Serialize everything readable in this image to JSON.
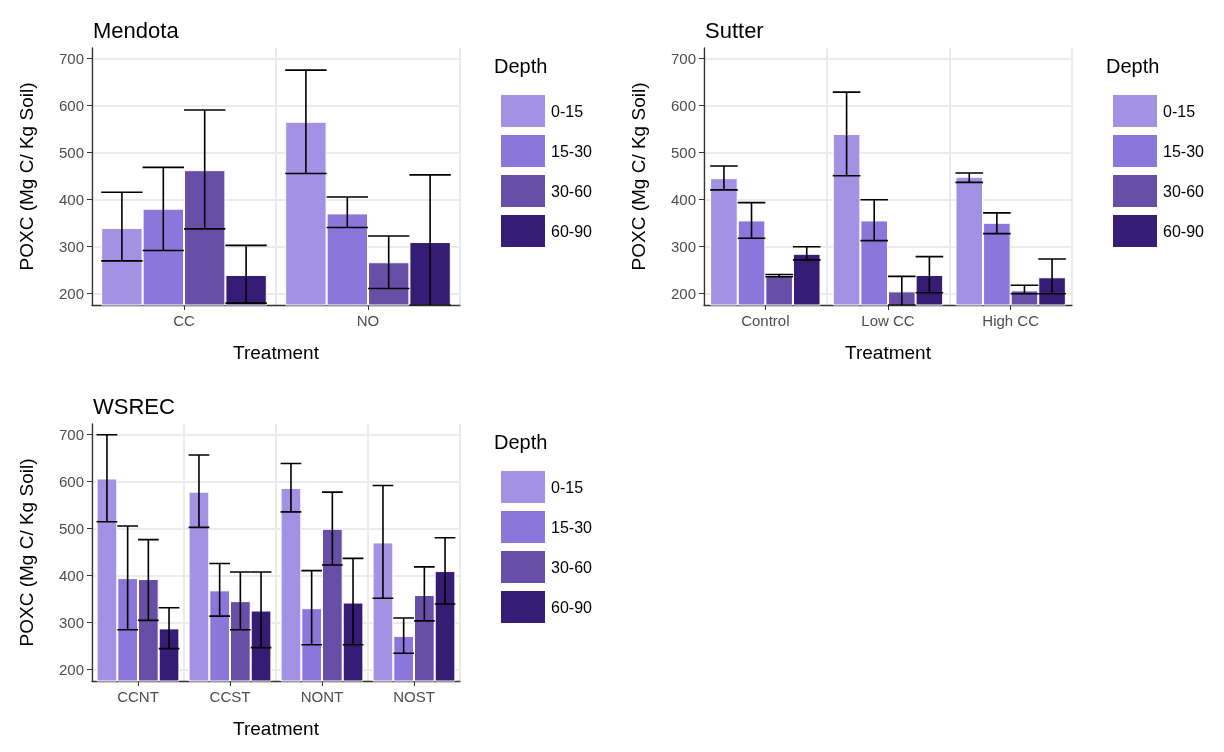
{
  "chart_data": [
    {
      "type": "bar",
      "title": "Mendota",
      "xlabel": "Treatment",
      "ylabel": "POXC (Mg C/ Kg Soil)",
      "legend_title": "Depth",
      "legend": "right",
      "grid": true,
      "ylim": [
        175,
        722
      ],
      "yticks": [
        200,
        300,
        400,
        500,
        600,
        700
      ],
      "categories": [
        "CC",
        "NO"
      ],
      "series": [
        {
          "name": "0-15",
          "color": "#a391e3",
          "values": [
            339,
            565
          ],
          "errors": [
            [
              269,
              415
            ],
            [
              455,
              675
            ]
          ]
        },
        {
          "name": "15-30",
          "color": "#8b77db",
          "values": [
            380,
            370
          ],
          "errors": [
            [
              291,
              468
            ],
            [
              340,
              405
            ]
          ]
        },
        {
          "name": "30-60",
          "color": "#684ea6",
          "values": [
            462,
            266
          ],
          "errors": [
            [
              337,
              590
            ],
            [
              210,
              322
            ]
          ]
        },
        {
          "name": "60-90",
          "color": "#361c74",
          "values": [
            239,
            309
          ],
          "errors": [
            [
              179,
              302
            ],
            [
              175,
              452
            ]
          ]
        }
      ]
    },
    {
      "type": "bar",
      "title": "Sutter",
      "xlabel": "Treatment",
      "ylabel": "POXC (Mg C/ Kg Soil)",
      "legend_title": "Depth",
      "legend": "right",
      "grid": true,
      "ylim": [
        175,
        722
      ],
      "yticks": [
        200,
        300,
        400,
        500,
        600,
        700
      ],
      "categories": [
        "Control",
        "Low CC",
        "High CC"
      ],
      "series": [
        {
          "name": "0-15",
          "color": "#a391e3",
          "values": [
            445,
            539,
            448
          ],
          "errors": [
            [
              420,
              471
            ],
            [
              450,
              628
            ],
            [
              436,
              456
            ]
          ]
        },
        {
          "name": "15-30",
          "color": "#8b77db",
          "values": [
            355,
            355,
            350
          ],
          "errors": [
            [
              317,
              393
            ],
            [
              312,
              399
            ],
            [
              327,
              371
            ]
          ]
        },
        {
          "name": "30-60",
          "color": "#684ea6",
          "values": [
            238,
            204,
            206
          ],
          "errors": [
            [
              235,
              240
            ],
            [
              175,
              236
            ],
            [
              199,
              217
            ]
          ]
        },
        {
          "name": "60-90",
          "color": "#361c74",
          "values": [
            284,
            239,
            234
          ],
          "errors": [
            [
              271,
              299
            ],
            [
              201,
              278
            ],
            [
              199,
              273
            ]
          ]
        }
      ]
    },
    {
      "type": "bar",
      "title": "WSREC",
      "xlabel": "Treatment",
      "ylabel": "POXC (Mg C/ Kg Soil)",
      "legend_title": "Depth",
      "legend": "right",
      "grid": true,
      "ylim": [
        175,
        722
      ],
      "yticks": [
        200,
        300,
        400,
        500,
        600,
        700
      ],
      "categories": [
        "CCNT",
        "CCST",
        "NONT",
        "NOST"
      ],
      "series": [
        {
          "name": "0-15",
          "color": "#a391e3",
          "values": [
            606,
            578,
            586,
            470
          ],
          "errors": [
            [
              514,
              699
            ],
            [
              502,
              656
            ],
            [
              535,
              638
            ],
            [
              351,
              591
            ]
          ]
        },
        {
          "name": "15-30",
          "color": "#8b77db",
          "values": [
            394,
            368,
            330,
            271
          ],
          "errors": [
            [
              284,
              505
            ],
            [
              313,
              425
            ],
            [
              252,
              410
            ],
            [
              234,
              309
            ]
          ]
        },
        {
          "name": "30-60",
          "color": "#684ea6",
          "values": [
            392,
            345,
            499,
            358
          ],
          "errors": [
            [
              304,
              476
            ],
            [
              284,
              407
            ],
            [
              422,
              577
            ],
            [
              303,
              418
            ]
          ]
        },
        {
          "name": "60-90",
          "color": "#361c74",
          "values": [
            287,
            325,
            342,
            409
          ],
          "errors": [
            [
              244,
              331
            ],
            [
              246,
              407
            ],
            [
              252,
              436
            ],
            [
              339,
              480
            ]
          ]
        }
      ]
    }
  ]
}
